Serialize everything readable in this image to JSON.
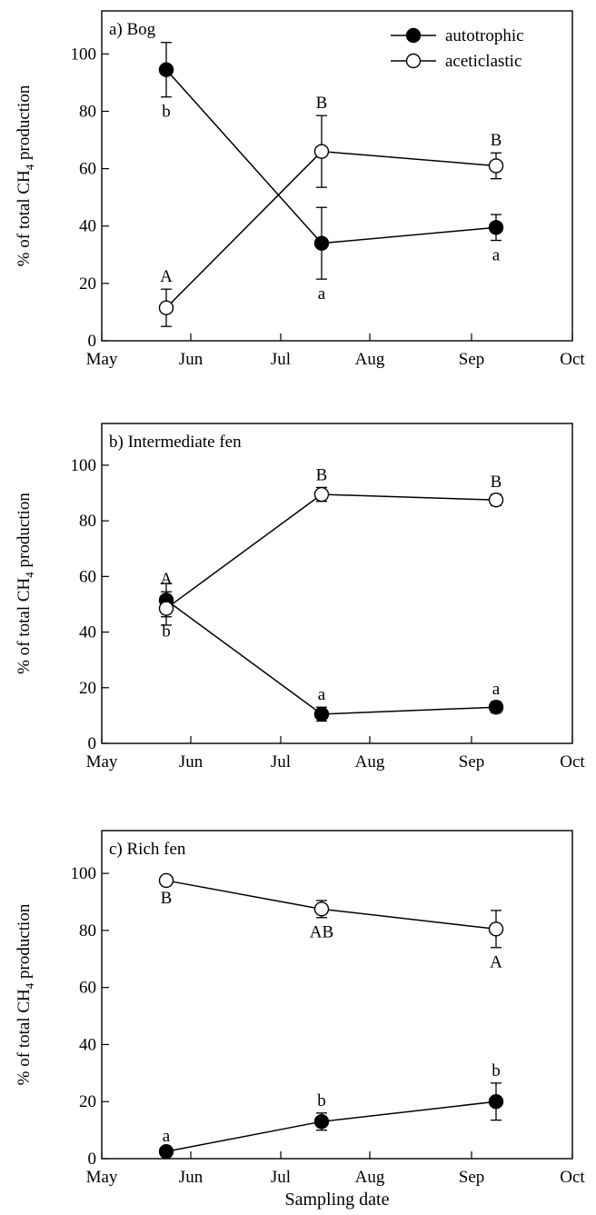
{
  "figure": {
    "xlabel": "Sampling date"
  },
  "legend": [
    {
      "label": "autotrophic",
      "marker": "filled-circle"
    },
    {
      "label": "aceticlastic",
      "marker": "open-circle"
    }
  ],
  "chart_data": [
    {
      "type": "line",
      "title": "a) Bog",
      "ylabel": "% of total CH4 production",
      "xlabel": "",
      "ylim": [
        0,
        115
      ],
      "yticks": [
        0,
        20,
        40,
        60,
        80,
        100
      ],
      "categories": [
        "May",
        "Jun",
        "Jul",
        "Aug",
        "Sep",
        "Oct"
      ],
      "x": [
        "late May",
        "mid Jul",
        "mid Sep"
      ],
      "series": [
        {
          "name": "autotrophic",
          "marker": "filled",
          "values": [
            94.5,
            34,
            39.5
          ],
          "errors": [
            9.5,
            12.5,
            4.5
          ],
          "letters": [
            "b",
            "a",
            "a"
          ],
          "letter_pos": [
            "below",
            "below",
            "below"
          ]
        },
        {
          "name": "aceticlastic",
          "marker": "open",
          "values": [
            11.5,
            66,
            61
          ],
          "errors": [
            6.5,
            12.5,
            4.5
          ],
          "letters": [
            "A",
            "B",
            "B"
          ],
          "letter_pos": [
            "above",
            "above",
            "above"
          ]
        }
      ],
      "legend_position": "top-right",
      "grid": false
    },
    {
      "type": "line",
      "title": "b) Intermediate fen",
      "ylabel": "% of total CH4 production",
      "xlabel": "",
      "ylim": [
        0,
        115
      ],
      "yticks": [
        0,
        20,
        40,
        60,
        80,
        100
      ],
      "categories": [
        "May",
        "Jun",
        "Jul",
        "Aug",
        "Sep",
        "Oct"
      ],
      "x": [
        "late May",
        "mid Jul",
        "mid Sep"
      ],
      "series": [
        {
          "name": "autotrophic",
          "marker": "filled",
          "values": [
            51.5,
            10.5,
            13
          ],
          "errors": [
            6,
            2.5,
            2
          ],
          "letters": [
            "b",
            "a",
            "a"
          ],
          "letter_pos": [
            "below",
            "above",
            "above"
          ]
        },
        {
          "name": "aceticlastic",
          "marker": "open",
          "values": [
            48.5,
            89.5,
            87.5
          ],
          "errors": [
            6,
            2.5,
            2
          ],
          "letters": [
            "A",
            "B",
            "B"
          ],
          "letter_pos": [
            "above",
            "above",
            "above"
          ]
        }
      ],
      "grid": false
    },
    {
      "type": "line",
      "title": "c) Rich fen",
      "ylabel": "% of total CH4 production",
      "xlabel": "Sampling date",
      "ylim": [
        0,
        115
      ],
      "yticks": [
        0,
        20,
        40,
        60,
        80,
        100
      ],
      "categories": [
        "May",
        "Jun",
        "Jul",
        "Aug",
        "Sep",
        "Oct"
      ],
      "x": [
        "late May",
        "mid Jul",
        "mid Sep"
      ],
      "series": [
        {
          "name": "autotrophic",
          "marker": "filled",
          "values": [
            2.5,
            13,
            20
          ],
          "errors": [
            1,
            3,
            6.5
          ],
          "letters": [
            "a",
            "b",
            "b"
          ],
          "letter_pos": [
            "above",
            "above",
            "above"
          ]
        },
        {
          "name": "aceticlastic",
          "marker": "open",
          "values": [
            97.5,
            87.5,
            80.5
          ],
          "errors": [
            1,
            3,
            6.5
          ],
          "letters": [
            "B",
            "AB",
            "A"
          ],
          "letter_pos": [
            "below",
            "below",
            "below"
          ]
        }
      ],
      "grid": false
    }
  ],
  "colors": {
    "axis": "#000000",
    "open_fill": "#ffffff",
    "filled": "#000000"
  }
}
